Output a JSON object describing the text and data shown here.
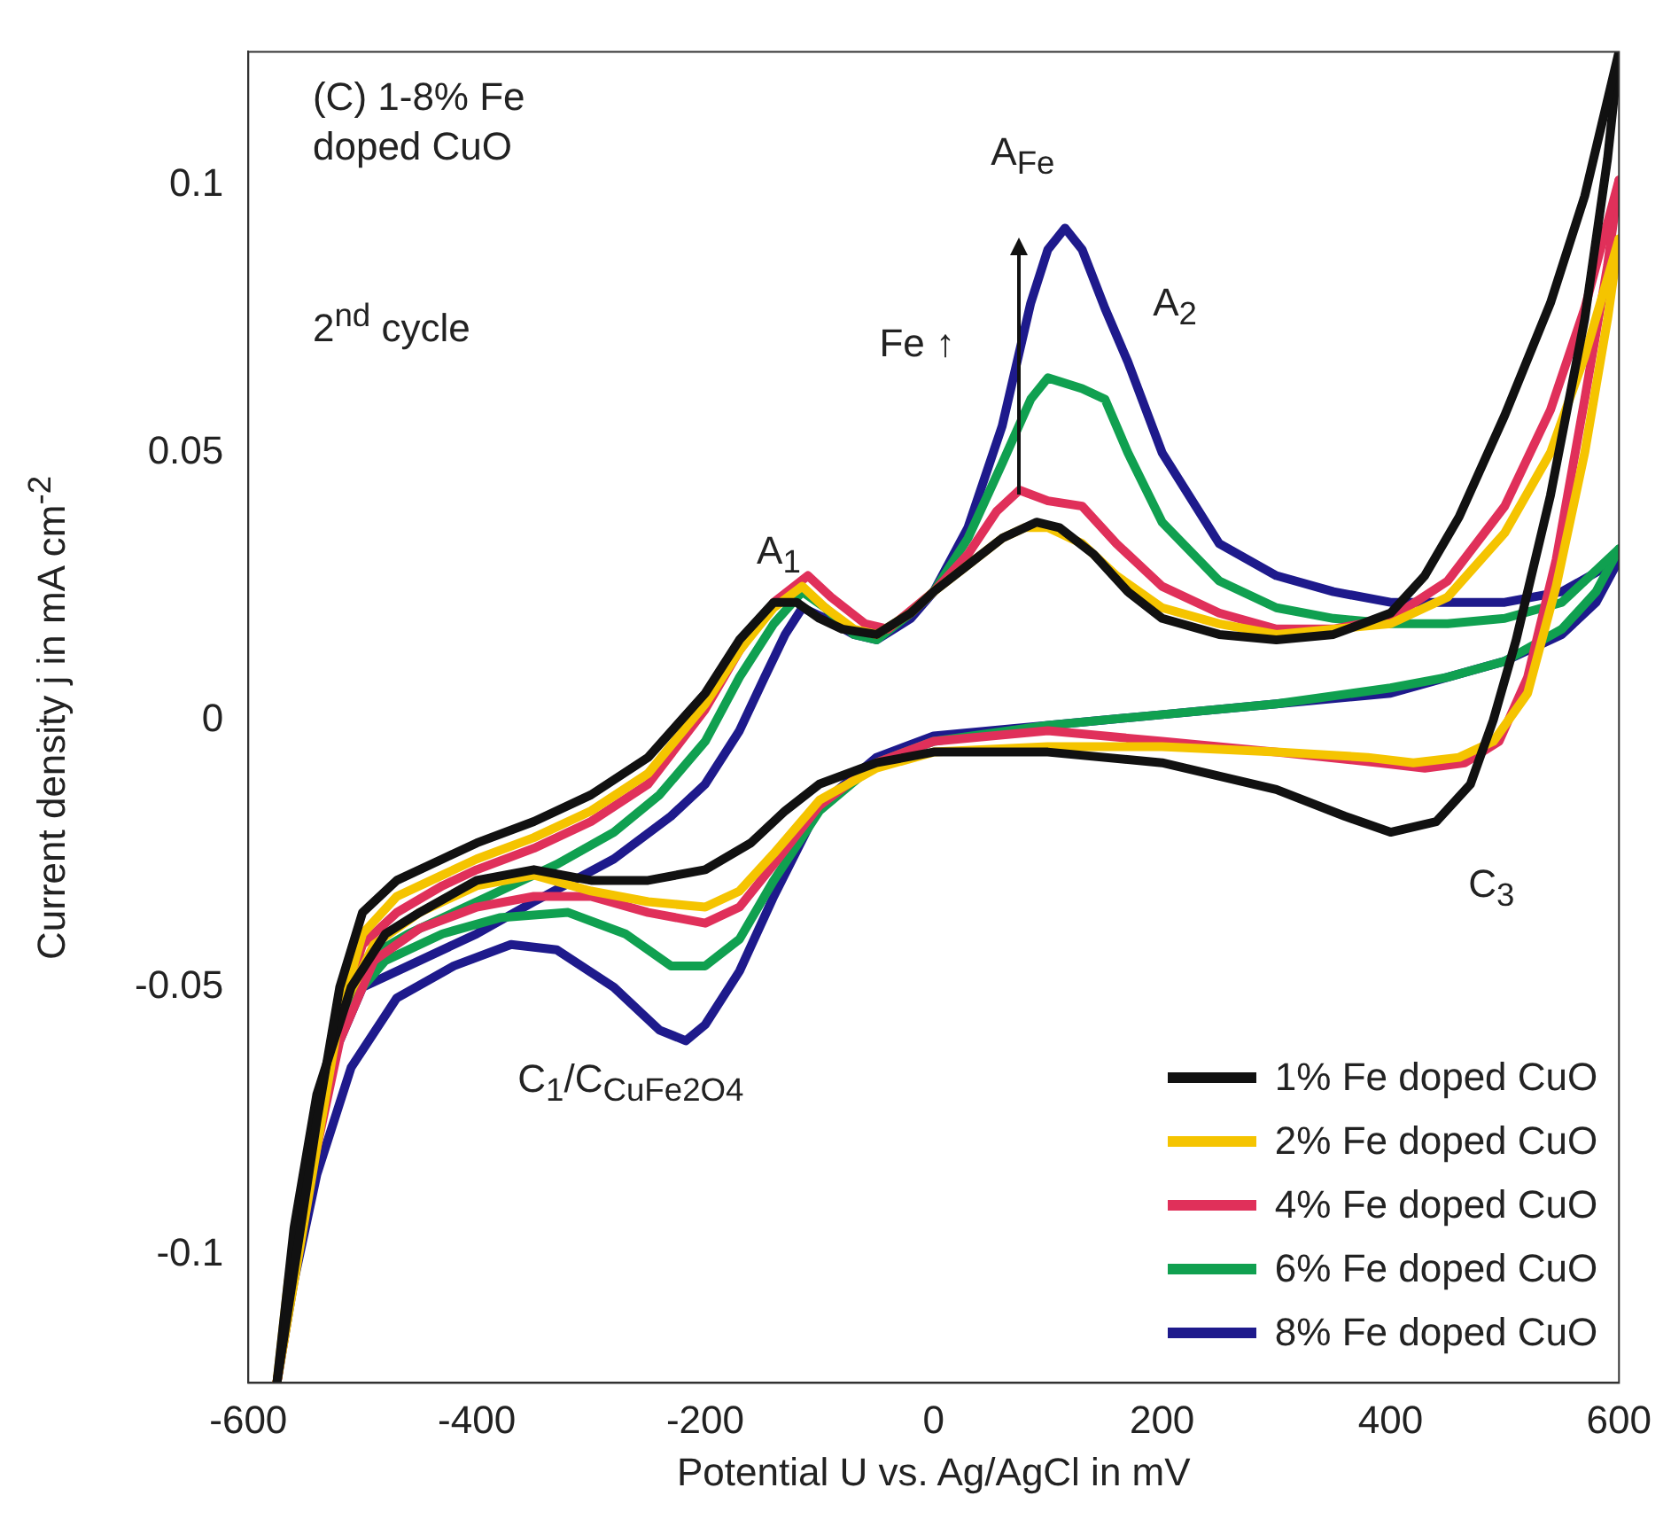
{
  "chart_data": {
    "type": "line",
    "xlabel": "Potential U vs. Ag/AgCl in mV",
    "ylabel": "Current density j in mA cm$^{-2}$",
    "xlim": [
      -600,
      600
    ],
    "xticks": [
      -600,
      -400,
      -200,
      0,
      200,
      400,
      600
    ],
    "ylim": [
      -0.124,
      0.125
    ],
    "yticks": [
      -0.1,
      -0.05,
      0,
      0.05,
      0.1
    ],
    "grid": false,
    "legend": "bottom right",
    "line_style": "solid",
    "marker": "none",
    "annotations": [
      "(C) 1-8% Fe doped CuO",
      "2$^{nd}$ cycle",
      "A$_{1}$",
      "A$_{Fe}$",
      "A$_{2}$",
      "Fe ↑",
      "C$_{3}$",
      "C$_{1}$/C$_{CuFe2O4}$"
    ],
    "series": [
      {
        "name": "1% Fe doped CuO",
        "color": "#111111",
        "x": [
          -575,
          -540,
          -520,
          -500,
          -470,
          -430,
          -400,
          -350,
          -300,
          -250,
          -200,
          -170,
          -140,
          -120,
          -100,
          -80,
          -50,
          -20,
          0,
          30,
          60,
          90,
          110,
          140,
          170,
          200,
          250,
          300,
          350,
          400,
          430,
          460,
          500,
          540,
          570,
          600
        ],
        "values": [
          -0.124,
          -0.075,
          -0.05,
          -0.036,
          -0.03,
          -0.026,
          -0.023,
          -0.019,
          -0.014,
          -0.007,
          0.005,
          0.015,
          0.022,
          0.022,
          0.019,
          0.017,
          0.016,
          0.02,
          0.024,
          0.029,
          0.034,
          0.037,
          0.036,
          0.031,
          0.024,
          0.019,
          0.016,
          0.015,
          0.016,
          0.02,
          0.027,
          0.038,
          0.057,
          0.078,
          0.098,
          0.125
        ]
      },
      {
        "color": "#111111",
        "x": [
          -575,
          -560,
          -540,
          -510,
          -480,
          -450,
          -400,
          -350,
          -300,
          -250,
          -200,
          -160,
          -130,
          -100,
          -50,
          0,
          100,
          200,
          300,
          360,
          400,
          440,
          470,
          490,
          510,
          540,
          570,
          590,
          600
        ],
        "values": [
          -0.124,
          -0.095,
          -0.07,
          -0.05,
          -0.04,
          -0.036,
          -0.03,
          -0.028,
          -0.03,
          -0.03,
          -0.028,
          -0.023,
          -0.017,
          -0.012,
          -0.008,
          -0.006,
          -0.006,
          -0.008,
          -0.013,
          -0.018,
          -0.021,
          -0.019,
          -0.012,
          0.0,
          0.015,
          0.042,
          0.075,
          0.105,
          0.125
        ]
      },
      {
        "name": "2% Fe doped CuO",
        "color": "#f5c400",
        "x": [
          -575,
          -540,
          -520,
          -500,
          -470,
          -430,
          -400,
          -350,
          -300,
          -250,
          -200,
          -170,
          -140,
          -115,
          -95,
          -70,
          -50,
          -20,
          0,
          30,
          60,
          80,
          100,
          130,
          160,
          200,
          250,
          300,
          350,
          400,
          450,
          500,
          540,
          570,
          600
        ],
        "values": [
          -0.124,
          -0.08,
          -0.055,
          -0.04,
          -0.033,
          -0.029,
          -0.026,
          -0.022,
          -0.017,
          -0.01,
          0.003,
          0.013,
          0.021,
          0.025,
          0.021,
          0.017,
          0.016,
          0.02,
          0.024,
          0.029,
          0.034,
          0.036,
          0.036,
          0.033,
          0.027,
          0.021,
          0.018,
          0.016,
          0.017,
          0.018,
          0.023,
          0.035,
          0.05,
          0.068,
          0.09
        ]
      },
      {
        "color": "#f5c400",
        "x": [
          -575,
          -565,
          -545,
          -520,
          -490,
          -450,
          -400,
          -350,
          -300,
          -250,
          -200,
          -170,
          -140,
          -100,
          -50,
          0,
          100,
          200,
          300,
          380,
          420,
          460,
          490,
          520,
          545,
          570,
          590,
          600
        ],
        "values": [
          -0.124,
          -0.105,
          -0.08,
          -0.055,
          -0.042,
          -0.036,
          -0.031,
          -0.029,
          -0.032,
          -0.034,
          -0.035,
          -0.032,
          -0.025,
          -0.015,
          -0.009,
          -0.006,
          -0.005,
          -0.005,
          -0.006,
          -0.007,
          -0.008,
          -0.007,
          -0.004,
          0.005,
          0.025,
          0.05,
          0.075,
          0.09
        ]
      },
      {
        "name": "4% Fe doped CuO",
        "color": "#e0305a",
        "x": [
          -575,
          -545,
          -520,
          -500,
          -470,
          -430,
          -400,
          -350,
          -300,
          -250,
          -200,
          -170,
          -140,
          -110,
          -90,
          -60,
          -40,
          0,
          30,
          55,
          75,
          100,
          130,
          160,
          200,
          250,
          300,
          350,
          400,
          450,
          500,
          540,
          570,
          600
        ],
        "values": [
          -0.124,
          -0.085,
          -0.055,
          -0.042,
          -0.036,
          -0.031,
          -0.028,
          -0.024,
          -0.019,
          -0.012,
          0.002,
          0.013,
          0.022,
          0.027,
          0.023,
          0.018,
          0.017,
          0.024,
          0.031,
          0.039,
          0.043,
          0.041,
          0.04,
          0.033,
          0.025,
          0.02,
          0.017,
          0.017,
          0.019,
          0.026,
          0.04,
          0.058,
          0.077,
          0.101
        ]
      },
      {
        "color": "#e0305a",
        "x": [
          -575,
          -565,
          -545,
          -520,
          -490,
          -450,
          -400,
          -350,
          -300,
          -250,
          -200,
          -170,
          -140,
          -100,
          -50,
          0,
          100,
          200,
          300,
          390,
          430,
          465,
          495,
          520,
          545,
          570,
          590,
          600
        ],
        "values": [
          -0.124,
          -0.11,
          -0.085,
          -0.06,
          -0.045,
          -0.039,
          -0.035,
          -0.033,
          -0.033,
          -0.036,
          -0.038,
          -0.035,
          -0.027,
          -0.016,
          -0.008,
          -0.004,
          -0.002,
          -0.004,
          -0.006,
          -0.008,
          -0.009,
          -0.008,
          -0.004,
          0.008,
          0.03,
          0.06,
          0.085,
          0.101
        ]
      },
      {
        "name": "6% Fe doped CuO",
        "color": "#10a050",
        "x": [
          -525,
          -500,
          -460,
          -420,
          -380,
          -330,
          -280,
          -240,
          -200,
          -170,
          -140,
          -115,
          -95,
          -70,
          -50,
          -20,
          0,
          30,
          60,
          85,
          100,
          130,
          150,
          170,
          200,
          250,
          300,
          350,
          400,
          450,
          500,
          550,
          600
        ],
        "values": [
          -0.06,
          -0.045,
          -0.04,
          -0.036,
          -0.032,
          -0.027,
          -0.021,
          -0.014,
          -0.004,
          0.008,
          0.018,
          0.024,
          0.021,
          0.016,
          0.015,
          0.02,
          0.024,
          0.034,
          0.048,
          0.06,
          0.064,
          0.062,
          0.06,
          0.05,
          0.037,
          0.026,
          0.021,
          0.019,
          0.018,
          0.018,
          0.019,
          0.022,
          0.032
        ]
      },
      {
        "color": "#10a050",
        "x": [
          -545,
          -520,
          -480,
          -430,
          -380,
          -320,
          -270,
          -230,
          -200,
          -170,
          -140,
          -100,
          -50,
          0,
          100,
          200,
          300,
          400,
          450,
          500,
          550,
          580,
          600
        ],
        "values": [
          -0.08,
          -0.055,
          -0.045,
          -0.04,
          -0.037,
          -0.036,
          -0.04,
          -0.046,
          -0.046,
          -0.041,
          -0.03,
          -0.017,
          -0.008,
          -0.004,
          -0.001,
          0.001,
          0.003,
          0.006,
          0.008,
          0.011,
          0.017,
          0.024,
          0.032
        ]
      },
      {
        "name": "8% Fe doped CuO",
        "color": "#1e1a8c",
        "x": [
          -530,
          -500,
          -450,
          -400,
          -350,
          -280,
          -230,
          -200,
          -170,
          -148,
          -130,
          -115,
          -95,
          -70,
          -50,
          -20,
          0,
          30,
          60,
          85,
          100,
          115,
          130,
          150,
          170,
          200,
          250,
          300,
          350,
          400,
          450,
          500,
          550,
          600
        ],
        "values": [
          -0.065,
          -0.05,
          -0.045,
          -0.04,
          -0.034,
          -0.026,
          -0.018,
          -0.012,
          -0.002,
          0.008,
          0.016,
          0.021,
          0.019,
          0.016,
          0.015,
          0.019,
          0.024,
          0.036,
          0.055,
          0.078,
          0.088,
          0.092,
          0.088,
          0.077,
          0.067,
          0.05,
          0.033,
          0.027,
          0.024,
          0.022,
          0.022,
          0.022,
          0.024,
          0.03
        ]
      },
      {
        "color": "#1e1a8c",
        "x": [
          -575,
          -560,
          -540,
          -510,
          -470,
          -420,
          -370,
          -330,
          -280,
          -240,
          -217,
          -200,
          -170,
          -140,
          -100,
          -50,
          0,
          100,
          200,
          300,
          400,
          450,
          500,
          550,
          580,
          600
        ],
        "values": [
          -0.124,
          -0.105,
          -0.085,
          -0.065,
          -0.052,
          -0.046,
          -0.042,
          -0.043,
          -0.05,
          -0.058,
          -0.06,
          -0.057,
          -0.047,
          -0.033,
          -0.016,
          -0.007,
          -0.003,
          -0.001,
          0.001,
          0.003,
          0.005,
          0.008,
          0.011,
          0.016,
          0.022,
          0.03
        ]
      }
    ]
  }
}
